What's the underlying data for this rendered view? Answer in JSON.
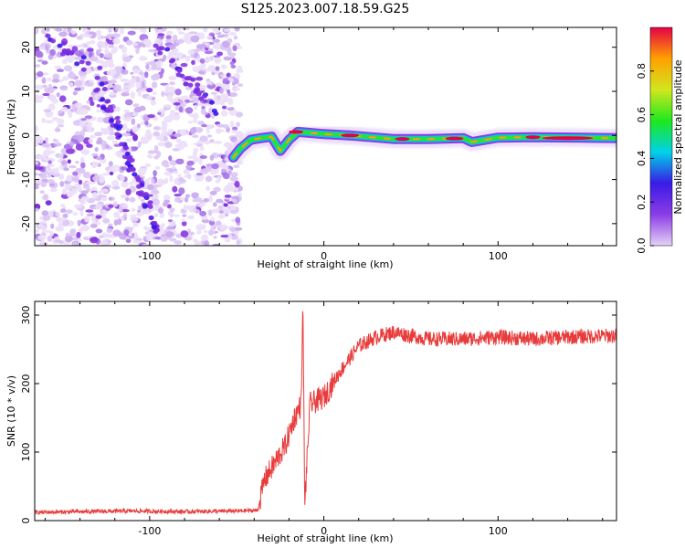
{
  "title": "S125.2023.007.18.59.G25",
  "chart_data": [
    {
      "type": "heatmap",
      "name": "spectrogram",
      "xlabel": "Height of straight line (km)",
      "ylabel": "Frequency (Hz)",
      "xlim": [
        -166,
        168
      ],
      "ylim": [
        -25,
        24.5
      ],
      "xticks": [
        -100,
        0,
        100
      ],
      "yticks": [
        -20,
        -10,
        0,
        10,
        20
      ],
      "colorbar": {
        "label": "Normalized spectral amplitude",
        "range": [
          0,
          1
        ],
        "ticks": [
          0.0,
          0.2,
          0.4,
          0.6,
          0.8
        ],
        "stops": [
          "#e4d2f7",
          "#8c3ce6",
          "#3a1ae6",
          "#00d2e8",
          "#1ee81e",
          "#d2e61e",
          "#ffa000",
          "#e60046"
        ]
      },
      "noise_region_x": [
        -166,
        -48
      ],
      "signal_ridge": [
        {
          "x": -52,
          "y": -5
        },
        {
          "x": -48,
          "y": -3
        },
        {
          "x": -42,
          "y": -1
        },
        {
          "x": -36,
          "y": -0.6
        },
        {
          "x": -30,
          "y": -0.3
        },
        {
          "x": -25,
          "y": -3.5
        },
        {
          "x": -20,
          "y": -1
        },
        {
          "x": -15,
          "y": 0.8
        },
        {
          "x": 0,
          "y": 0.3
        },
        {
          "x": 15,
          "y": 0
        },
        {
          "x": 40,
          "y": -0.8
        },
        {
          "x": 60,
          "y": -0.8
        },
        {
          "x": 80,
          "y": -0.6
        },
        {
          "x": 85,
          "y": -1.5
        },
        {
          "x": 100,
          "y": -0.5
        },
        {
          "x": 120,
          "y": -0.4
        },
        {
          "x": 168,
          "y": -0.6
        }
      ]
    },
    {
      "type": "line",
      "name": "snr",
      "xlabel": "Height of straight line (km)",
      "ylabel": "SNR (10 * v/v)",
      "xlim": [
        -166,
        168
      ],
      "ylim": [
        0,
        320
      ],
      "xticks": [
        -100,
        0,
        100
      ],
      "yticks": [
        0,
        100,
        200,
        300
      ],
      "color": "#e83c3c",
      "x": [
        -166,
        -140,
        -110,
        -80,
        -50,
        -38,
        -34,
        -28,
        -22,
        -17,
        -13,
        -12,
        -11,
        -8,
        0,
        10,
        20,
        30,
        40,
        50,
        60,
        80,
        100,
        120,
        140,
        168
      ],
      "y": [
        12,
        13,
        14,
        13,
        14,
        15,
        60,
        85,
        110,
        150,
        170,
        320,
        20,
        170,
        180,
        220,
        255,
        268,
        275,
        270,
        265,
        265,
        268,
        265,
        268,
        270
      ]
    }
  ]
}
